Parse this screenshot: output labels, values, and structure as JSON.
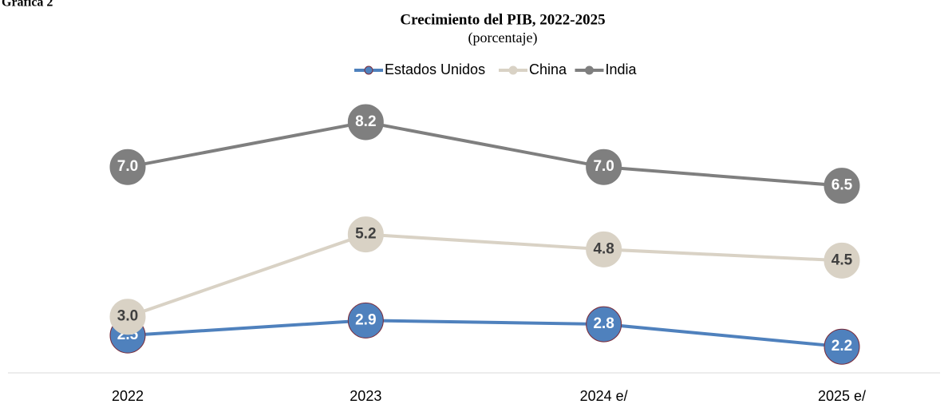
{
  "label": "Gráfica 2",
  "chart_data": {
    "type": "line",
    "title": "Crecimiento del PIB, 2022-2025",
    "subtitle": "(porcentaje)",
    "categories": [
      "2022",
      "2023",
      "2024 e/",
      "2025 e/"
    ],
    "series": [
      {
        "name": "Estados Unidos",
        "color": "#4f81bd",
        "values": [
          2.5,
          2.9,
          2.8,
          2.2
        ],
        "value_labels": [
          "2.5",
          "2.9",
          "2.8",
          "2.2"
        ]
      },
      {
        "name": "China",
        "color": "#d9d2c5",
        "values": [
          3.0,
          5.2,
          4.8,
          4.5
        ],
        "value_labels": [
          "3.0",
          "5.2",
          "4.8",
          "4.5"
        ]
      },
      {
        "name": "India",
        "color": "#7f7f7f",
        "values": [
          7.0,
          8.2,
          7.0,
          6.5
        ],
        "value_labels": [
          "7.0",
          "8.2",
          "7.0",
          "6.5"
        ]
      }
    ],
    "ylim": [
      1.5,
      9.5
    ],
    "legend": "top"
  }
}
